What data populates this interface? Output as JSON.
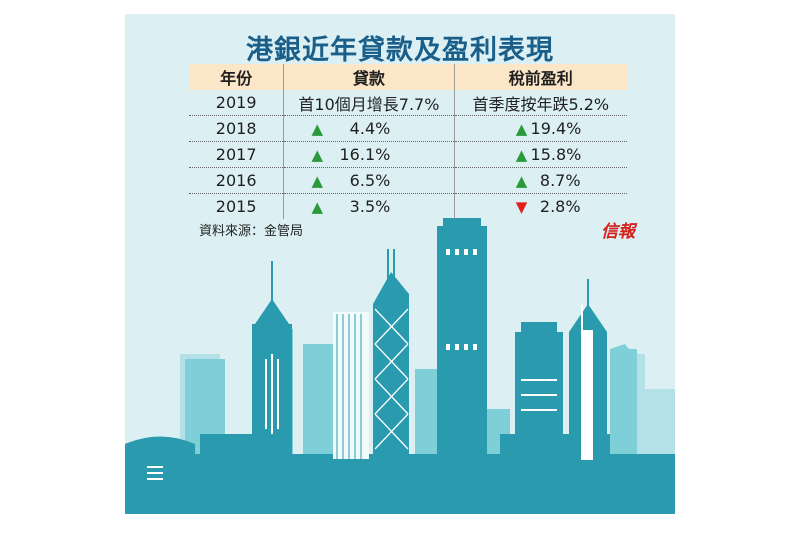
{
  "title": "港銀近年貸款及盈利表現",
  "table": {
    "headers": [
      "年份",
      "貸款",
      "稅前盈利"
    ],
    "rows": [
      {
        "year": "2019",
        "loan_text": "首10個月增長7.7%",
        "profit_text": "首季度按年跌5.2%"
      },
      {
        "year": "2018",
        "loan_dir": "up",
        "loan": "4.4%",
        "profit_dir": "up",
        "profit": "19.4%"
      },
      {
        "year": "2017",
        "loan_dir": "up",
        "loan": "16.1%",
        "profit_dir": "up",
        "profit": "15.8%"
      },
      {
        "year": "2016",
        "loan_dir": "up",
        "loan": "6.5%",
        "profit_dir": "up",
        "profit": "8.7%"
      },
      {
        "year": "2015",
        "loan_dir": "up",
        "loan": "3.5%",
        "profit_dir": "down",
        "profit": "2.8%"
      }
    ]
  },
  "source": "資料來源：金管局",
  "brand": "信報",
  "arrow_up": "▲",
  "arrow_down": "▼",
  "colors": {
    "background": "#dcf0f3",
    "header_fill": "#fbe6c8",
    "title": "#1a5f8a",
    "up": "#2a9a3a",
    "down": "#e0201a",
    "skyline_dark": "#2a9bae",
    "skyline_light": "#7fcfd8"
  }
}
